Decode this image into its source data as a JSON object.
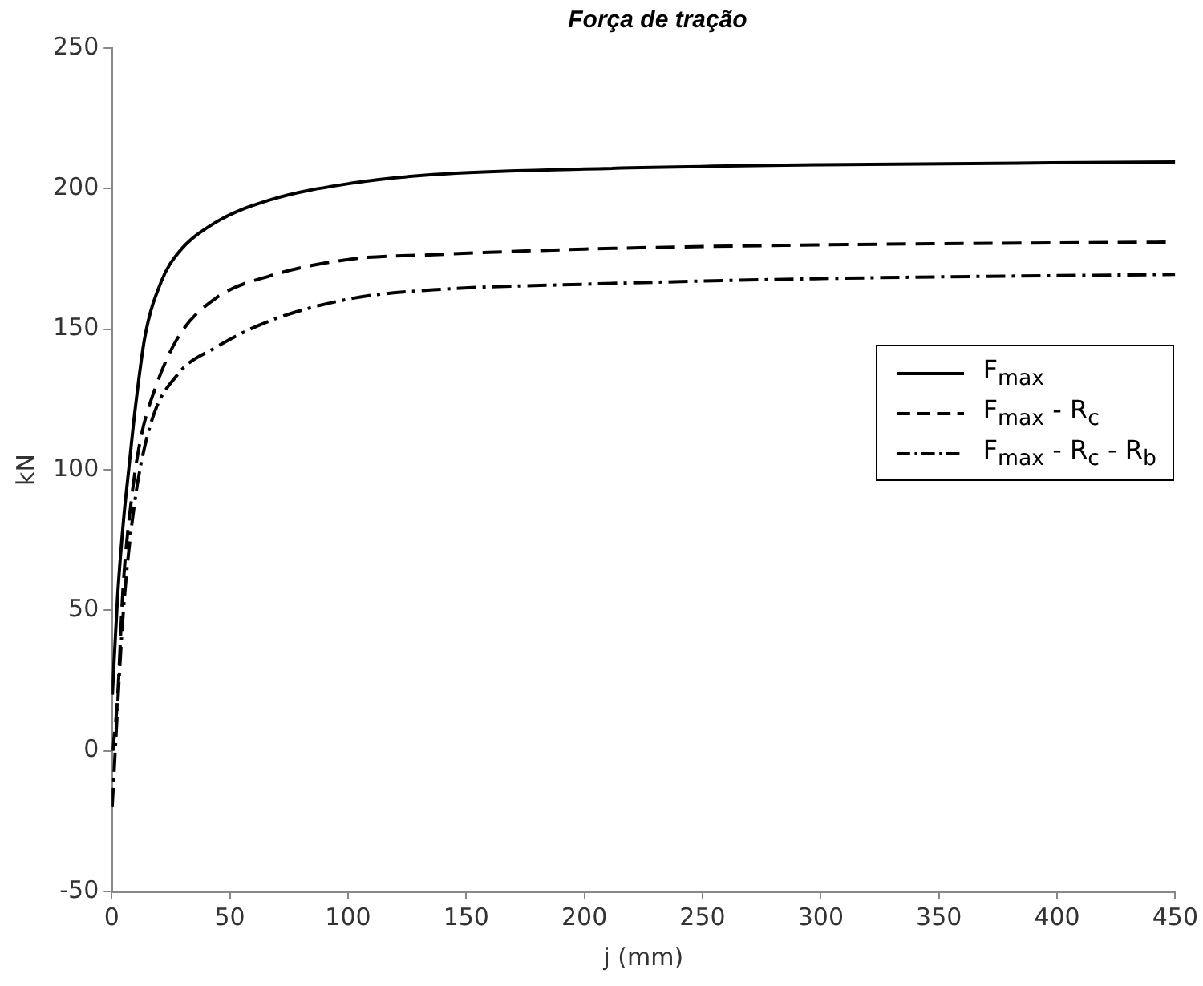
{
  "chart_data": {
    "type": "line",
    "title": "Força de tração",
    "xlabel": "j (mm)",
    "ylabel": "kN",
    "xlim": [
      0,
      450
    ],
    "xticks": [
      0,
      50,
      100,
      150,
      200,
      250,
      300,
      350,
      400,
      450
    ],
    "ylim": [
      -50,
      250
    ],
    "yticks": [
      -50,
      0,
      50,
      100,
      150,
      200,
      250
    ],
    "grid": false,
    "legend": "right",
    "marker": "none",
    "series": [
      {
        "name": "F$_{max}$",
        "color": "#000000",
        "line_style": "solid",
        "x": [
          0.3,
          2.5,
          5,
          7.2,
          10,
          14,
          21,
          28,
          44,
          67,
          102,
          136,
          200,
          300,
          450
        ],
        "values": [
          20,
          55,
          82,
          100,
          122,
          147,
          167,
          177,
          188,
          196,
          202,
          205,
          207,
          208.5,
          209.5
        ]
      },
      {
        "name": "F$_{max}$ - R$_{c}$",
        "color": "#000000",
        "line_style": "dashed",
        "x": [
          0.5,
          2.5,
          4.8,
          8.3,
          12,
          18,
          28,
          44,
          67,
          102,
          136,
          200,
          300,
          450
        ],
        "values": [
          0,
          19,
          58,
          89,
          110,
          128,
          147,
          161,
          169,
          175,
          176.5,
          178.5,
          180,
          181
        ]
      },
      {
        "name": "F$_{max}$ - R$_{c}$ - R$_{b}$",
        "color": "#000000",
        "line_style": "dashdot",
        "x": [
          0.2,
          4.8,
          9.5,
          16.4,
          28,
          44,
          67,
          102,
          136,
          200,
          300,
          450
        ],
        "values": [
          -20,
          48,
          87,
          116,
          134,
          143.5,
          153,
          161,
          164,
          166,
          168,
          169.5
        ]
      }
    ]
  }
}
